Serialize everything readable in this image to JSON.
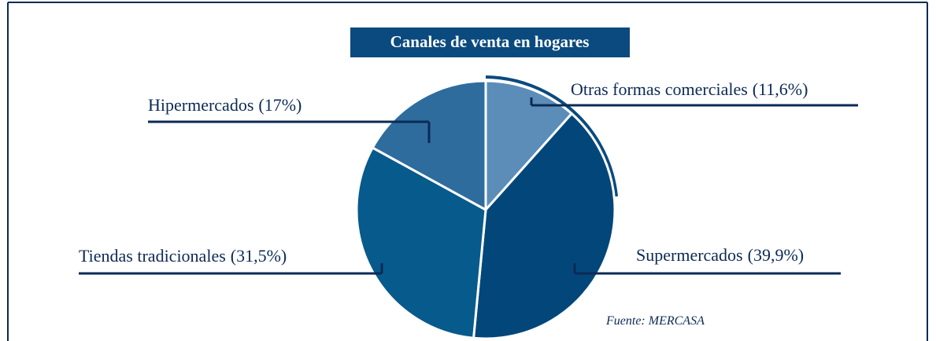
{
  "chart_data": {
    "type": "pie",
    "title": "Canales de venta en hogares",
    "categories": [
      "Otras formas comerciales",
      "Supermercados",
      "Tiendas tradicionales",
      "Hipermercados"
    ],
    "values": [
      11.6,
      39.9,
      31.5,
      17
    ],
    "value_labels": [
      "(11,6%)",
      "(39,9%)",
      "(31,5%)",
      "(17%)"
    ],
    "colors": [
      "#5b8db8",
      "#03477a",
      "#075a8c",
      "#2e6c9e"
    ],
    "source": "Fuente: MERCASA"
  }
}
